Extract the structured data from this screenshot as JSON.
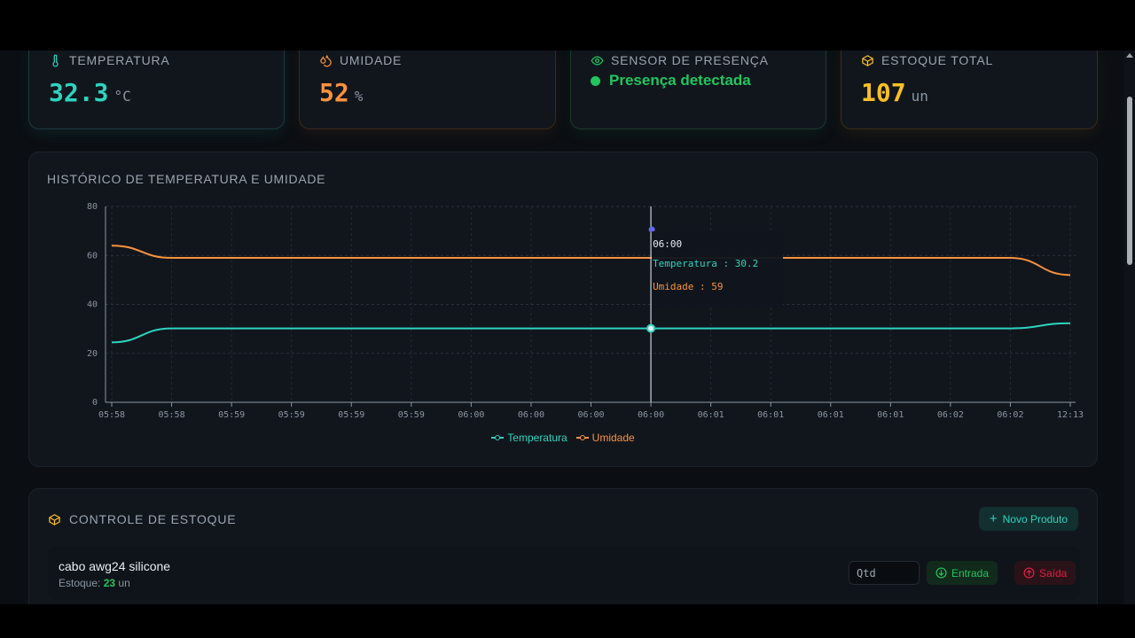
{
  "stats": {
    "temperature": {
      "label": "TEMPERATURA",
      "value": "32.3",
      "unit": "°C",
      "color": "#2dd4bf",
      "icon": "thermometer-icon"
    },
    "humidity": {
      "label": "UMIDADE",
      "value": "52",
      "unit": "%",
      "color": "#fb923c",
      "icon": "droplets-icon"
    },
    "presence": {
      "label": "SENSOR DE PRESENÇA",
      "status": "Presença detectada",
      "color": "#22c55e",
      "icon": "eye-icon"
    },
    "stock": {
      "label": "ESTOQUE TOTAL",
      "value": "107",
      "unit": "un",
      "color": "#fbbf24",
      "icon": "box-icon"
    }
  },
  "chart": {
    "title": "HISTÓRICO DE TEMPERATURA E UMIDADE",
    "tooltip": {
      "time": "06:00",
      "temp_label": "Temperatura : 30.2",
      "hum_label": "Umidade : 59"
    }
  },
  "chart_data": {
    "type": "line",
    "ylim": [
      0,
      80
    ],
    "yticks": [
      0,
      20,
      40,
      60,
      80
    ],
    "grid": true,
    "legend_position": "bottom-center",
    "x": [
      "05:58",
      "05:58",
      "05:59",
      "05:59",
      "05:59",
      "05:59",
      "06:00",
      "06:00",
      "06:00",
      "06:00",
      "06:01",
      "06:01",
      "06:01",
      "06:01",
      "06:02",
      "06:02",
      "12:13"
    ],
    "series": [
      {
        "name": "Temperatura",
        "color": "#2dd4bf",
        "values": [
          24.5,
          30.2,
          30.2,
          30.2,
          30.2,
          30.2,
          30.2,
          30.2,
          30.2,
          30.2,
          30.2,
          30.2,
          30.2,
          30.2,
          30.2,
          30.2,
          32.3
        ]
      },
      {
        "name": "Umidade",
        "color": "#fb923c",
        "values": [
          64,
          59,
          59,
          59,
          59,
          59,
          59,
          59,
          59,
          59,
          59,
          59,
          59,
          59,
          59,
          59,
          52
        ]
      }
    ]
  },
  "stock_section": {
    "title": "CONTROLE DE ESTOQUE",
    "new_button": "Novo Produto",
    "items": [
      {
        "name": "cabo awg24 silicone",
        "stock_label": "Estoque:",
        "stock_value": "23",
        "stock_unit": "un",
        "qty_placeholder": "Qtd",
        "in_label": "Entrada",
        "out_label": "Saída"
      }
    ]
  }
}
